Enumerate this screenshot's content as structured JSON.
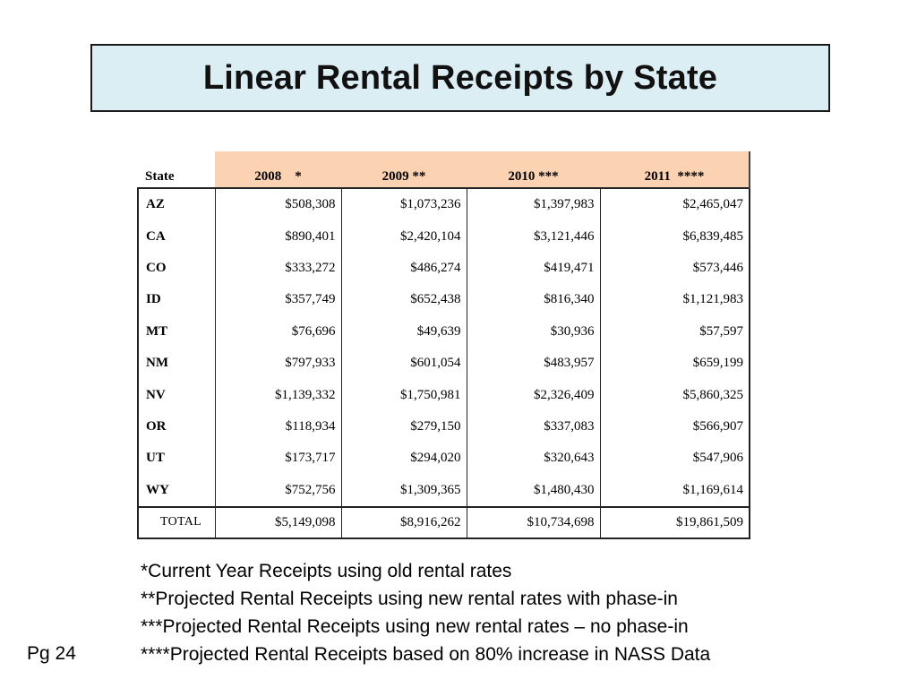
{
  "title": "Linear Rental Receipts by State",
  "table": {
    "state_header": "State",
    "year_headers": [
      "2008    *",
      "2009 **",
      "2010 ***",
      "2011  ****"
    ],
    "rows": [
      {
        "state": "AZ",
        "values": [
          "$508,308",
          "$1,073,236",
          "$1,397,983",
          "$2,465,047"
        ]
      },
      {
        "state": "CA",
        "values": [
          "$890,401",
          "$2,420,104",
          "$3,121,446",
          "$6,839,485"
        ]
      },
      {
        "state": "CO",
        "values": [
          "$333,272",
          "$486,274",
          "$419,471",
          "$573,446"
        ]
      },
      {
        "state": "ID",
        "values": [
          "$357,749",
          "$652,438",
          "$816,340",
          "$1,121,983"
        ]
      },
      {
        "state": "MT",
        "values": [
          "$76,696",
          "$49,639",
          "$30,936",
          "$57,597"
        ]
      },
      {
        "state": "NM",
        "values": [
          "$797,933",
          "$601,054",
          "$483,957",
          "$659,199"
        ]
      },
      {
        "state": "NV",
        "values": [
          "$1,139,332",
          "$1,750,981",
          "$2,326,409",
          "$5,860,325"
        ]
      },
      {
        "state": "OR",
        "values": [
          "$118,934",
          "$279,150",
          "$337,083",
          "$566,907"
        ]
      },
      {
        "state": "UT",
        "values": [
          "$173,717",
          "$294,020",
          "$320,643",
          "$547,906"
        ]
      },
      {
        "state": "WY",
        "values": [
          "$752,756",
          "$1,309,365",
          "$1,480,430",
          "$1,169,614"
        ]
      }
    ],
    "total": {
      "label": "TOTAL",
      "values": [
        "$5,149,098",
        "$8,916,262",
        "$10,734,698",
        "$19,861,509"
      ]
    }
  },
  "footnotes": [
    "*Current Year Receipts using old rental rates",
    "**Projected Rental Receipts using new rental rates with phase-in",
    "***Projected Rental Receipts using new rental rates – no phase-in",
    "****Projected Rental Receipts based on 80% increase in NASS Data"
  ],
  "page_label": "Pg 24"
}
